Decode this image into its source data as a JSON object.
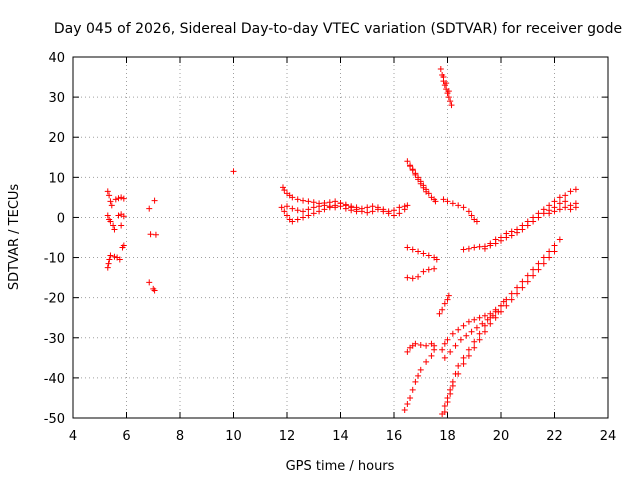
{
  "chart_data": {
    "type": "scatter",
    "title": "Day 045 of 2026, Sidereal Day-to-day VTEC variation (SDTVAR) for receiver gode",
    "xlabel": "GPS time / hours",
    "ylabel": "SDTVAR / TECUs",
    "xlim": [
      4,
      24
    ],
    "ylim": [
      -50,
      40
    ],
    "xticks": [
      4,
      6,
      8,
      10,
      12,
      14,
      16,
      18,
      20,
      22,
      24
    ],
    "yticks": [
      -50,
      -40,
      -30,
      -20,
      -10,
      0,
      10,
      20,
      30,
      40
    ],
    "grid": true,
    "marker": "+",
    "color": "#ff0000",
    "points": [
      [
        5.3,
        6.5
      ],
      [
        5.35,
        5.5
      ],
      [
        5.4,
        4.0
      ],
      [
        5.45,
        3.0
      ],
      [
        5.3,
        0.5
      ],
      [
        5.35,
        -0.5
      ],
      [
        5.4,
        -1.0
      ],
      [
        5.55,
        -3.0
      ],
      [
        5.5,
        -2.0
      ],
      [
        5.3,
        -12.5
      ],
      [
        5.33,
        -11.5
      ],
      [
        5.36,
        -10.5
      ],
      [
        5.4,
        -9.5
      ],
      [
        5.55,
        -9.8
      ],
      [
        5.65,
        -10.0
      ],
      [
        5.75,
        -10.5
      ],
      [
        5.6,
        4.5
      ],
      [
        5.7,
        4.8
      ],
      [
        5.8,
        5.0
      ],
      [
        5.9,
        4.7
      ],
      [
        5.7,
        0.5
      ],
      [
        5.8,
        0.8
      ],
      [
        5.9,
        0.3
      ],
      [
        5.8,
        -2.0
      ],
      [
        5.85,
        -7.5
      ],
      [
        5.9,
        -7.0
      ],
      [
        6.85,
        2.2
      ],
      [
        7.05,
        4.2
      ],
      [
        6.9,
        -4.2
      ],
      [
        7.1,
        -4.3
      ],
      [
        6.85,
        -16.2
      ],
      [
        7.0,
        -17.8
      ],
      [
        7.05,
        -18.2
      ],
      [
        10.0,
        11.5
      ],
      [
        11.85,
        7.5
      ],
      [
        11.9,
        6.8
      ],
      [
        12.0,
        6.0
      ],
      [
        12.1,
        5.5
      ],
      [
        12.2,
        5.0
      ],
      [
        12.4,
        4.5
      ],
      [
        12.6,
        4.2
      ],
      [
        12.8,
        4.0
      ],
      [
        13.0,
        3.8
      ],
      [
        13.2,
        3.5
      ],
      [
        13.4,
        3.6
      ],
      [
        13.6,
        3.8
      ],
      [
        13.8,
        4.0
      ],
      [
        14.0,
        3.6
      ],
      [
        14.2,
        3.2
      ],
      [
        14.4,
        2.8
      ],
      [
        14.6,
        2.5
      ],
      [
        14.8,
        2.2
      ],
      [
        15.0,
        2.5
      ],
      [
        15.2,
        2.8
      ],
      [
        15.4,
        2.5
      ],
      [
        15.6,
        2.0
      ],
      [
        15.8,
        1.5
      ],
      [
        16.0,
        1.8
      ],
      [
        16.2,
        2.5
      ],
      [
        16.4,
        2.8
      ],
      [
        11.8,
        2.5
      ],
      [
        11.9,
        1.5
      ],
      [
        12.0,
        0.5
      ],
      [
        12.1,
        -0.5
      ],
      [
        12.2,
        -1.0
      ],
      [
        12.4,
        -0.5
      ],
      [
        12.6,
        0.0
      ],
      [
        12.8,
        0.5
      ],
      [
        13.0,
        1.0
      ],
      [
        13.2,
        1.5
      ],
      [
        13.4,
        2.0
      ],
      [
        13.6,
        2.5
      ],
      [
        13.8,
        3.0
      ],
      [
        14.0,
        3.5
      ],
      [
        14.2,
        3.0
      ],
      [
        14.4,
        2.5
      ],
      [
        14.6,
        2.0
      ],
      [
        14.8,
        1.5
      ],
      [
        15.0,
        1.2
      ],
      [
        15.2,
        1.5
      ],
      [
        15.4,
        2.0
      ],
      [
        15.6,
        1.5
      ],
      [
        15.8,
        1.0
      ],
      [
        16.0,
        0.5
      ],
      [
        16.2,
        1.0
      ],
      [
        16.4,
        2.0
      ],
      [
        16.5,
        3.0
      ],
      [
        12.0,
        2.8
      ],
      [
        12.2,
        2.2
      ],
      [
        12.4,
        1.8
      ],
      [
        12.6,
        1.5
      ],
      [
        12.8,
        2.0
      ],
      [
        13.0,
        2.5
      ],
      [
        13.2,
        2.8
      ],
      [
        13.4,
        3.0
      ],
      [
        13.6,
        2.8
      ],
      [
        13.8,
        2.5
      ],
      [
        14.0,
        2.8
      ],
      [
        14.2,
        2.2
      ],
      [
        14.4,
        1.8
      ],
      [
        14.6,
        1.5
      ],
      [
        16.5,
        14.0
      ],
      [
        16.6,
        13.0
      ],
      [
        16.7,
        12.0
      ],
      [
        16.8,
        11.0
      ],
      [
        16.9,
        10.0
      ],
      [
        17.0,
        9.0
      ],
      [
        17.1,
        8.0
      ],
      [
        17.2,
        7.0
      ],
      [
        17.3,
        6.0
      ],
      [
        17.4,
        5.0
      ],
      [
        17.5,
        4.5
      ],
      [
        17.55,
        4.0
      ],
      [
        16.6,
        12.8
      ],
      [
        16.7,
        11.8
      ],
      [
        16.8,
        10.6
      ],
      [
        16.9,
        9.5
      ],
      [
        17.0,
        8.4
      ],
      [
        17.1,
        7.4
      ],
      [
        17.2,
        6.4
      ],
      [
        17.75,
        37.0
      ],
      [
        17.8,
        35.5
      ],
      [
        17.85,
        34.0
      ],
      [
        17.9,
        33.0
      ],
      [
        17.95,
        32.0
      ],
      [
        18.0,
        31.0
      ],
      [
        18.05,
        30.0
      ],
      [
        18.1,
        29.0
      ],
      [
        18.15,
        28.0
      ],
      [
        17.85,
        35.0
      ],
      [
        17.95,
        33.5
      ],
      [
        18.05,
        31.5
      ],
      [
        17.85,
        4.5
      ],
      [
        18.0,
        4.0
      ],
      [
        18.2,
        3.5
      ],
      [
        18.4,
        3.0
      ],
      [
        18.6,
        2.5
      ],
      [
        18.8,
        1.5
      ],
      [
        18.9,
        0.5
      ],
      [
        19.0,
        -0.5
      ],
      [
        19.1,
        -1.0
      ],
      [
        16.5,
        -7.5
      ],
      [
        16.7,
        -8.0
      ],
      [
        16.9,
        -8.5
      ],
      [
        17.1,
        -9.0
      ],
      [
        17.3,
        -9.5
      ],
      [
        17.5,
        -10.0
      ],
      [
        17.6,
        -10.5
      ],
      [
        16.5,
        -15.0
      ],
      [
        16.7,
        -15.2
      ],
      [
        16.9,
        -14.8
      ],
      [
        17.1,
        -13.5
      ],
      [
        17.3,
        -13.0
      ],
      [
        17.5,
        -12.8
      ],
      [
        16.5,
        -33.5
      ],
      [
        16.6,
        -32.5
      ],
      [
        16.7,
        -32.0
      ],
      [
        16.8,
        -31.5
      ],
      [
        17.0,
        -31.8
      ],
      [
        17.2,
        -32.0
      ],
      [
        17.4,
        -31.5
      ],
      [
        17.5,
        -32.0
      ],
      [
        16.4,
        -48.0
      ],
      [
        16.5,
        -46.5
      ],
      [
        16.6,
        -45.0
      ],
      [
        16.7,
        -43.0
      ],
      [
        16.8,
        -41.0
      ],
      [
        16.9,
        -39.5
      ],
      [
        17.0,
        -38.0
      ],
      [
        17.2,
        -36.0
      ],
      [
        17.4,
        -34.5
      ],
      [
        17.5,
        -33.0
      ],
      [
        17.7,
        -24.0
      ],
      [
        17.8,
        -23.0
      ],
      [
        17.9,
        -21.5
      ],
      [
        18.0,
        -20.5
      ],
      [
        18.05,
        -19.5
      ],
      [
        17.8,
        -49.0
      ],
      [
        17.9,
        -47.0
      ],
      [
        18.0,
        -45.0
      ],
      [
        18.1,
        -43.0
      ],
      [
        18.2,
        -41.0
      ],
      [
        18.3,
        -39.0
      ],
      [
        18.4,
        -37.0
      ],
      [
        18.6,
        -35.0
      ],
      [
        18.8,
        -33.0
      ],
      [
        19.0,
        -31.0
      ],
      [
        19.2,
        -29.0
      ],
      [
        19.4,
        -27.0
      ],
      [
        19.6,
        -25.0
      ],
      [
        19.8,
        -23.5
      ],
      [
        20.0,
        -22.0
      ],
      [
        20.2,
        -20.5
      ],
      [
        20.4,
        -19.0
      ],
      [
        20.6,
        -17.5
      ],
      [
        20.8,
        -16.0
      ],
      [
        21.0,
        -14.5
      ],
      [
        21.2,
        -13.0
      ],
      [
        21.4,
        -11.5
      ],
      [
        21.6,
        -10.0
      ],
      [
        21.8,
        -8.5
      ],
      [
        22.0,
        -7.0
      ],
      [
        22.2,
        -5.5
      ],
      [
        17.9,
        -48.5
      ],
      [
        18.0,
        -46.0
      ],
      [
        18.1,
        -44.0
      ],
      [
        18.2,
        -42.0
      ],
      [
        18.4,
        -39.0
      ],
      [
        18.6,
        -36.5
      ],
      [
        18.8,
        -34.5
      ],
      [
        19.0,
        -32.5
      ],
      [
        19.2,
        -30.5
      ],
      [
        19.4,
        -28.5
      ],
      [
        19.6,
        -26.5
      ],
      [
        19.8,
        -25.0
      ],
      [
        20.0,
        -23.5
      ],
      [
        20.2,
        -22.0
      ],
      [
        20.4,
        -20.5
      ],
      [
        20.6,
        -19.0
      ],
      [
        20.8,
        -17.5
      ],
      [
        21.0,
        -16.0
      ],
      [
        21.2,
        -14.5
      ],
      [
        21.4,
        -13.0
      ],
      [
        21.6,
        -11.5
      ],
      [
        21.8,
        -10.0
      ],
      [
        22.0,
        -8.5
      ],
      [
        17.8,
        -33.0
      ],
      [
        17.9,
        -31.5
      ],
      [
        18.0,
        -30.5
      ],
      [
        18.2,
        -29.0
      ],
      [
        18.4,
        -28.0
      ],
      [
        18.6,
        -27.0
      ],
      [
        18.8,
        -26.0
      ],
      [
        19.0,
        -25.5
      ],
      [
        19.2,
        -25.0
      ],
      [
        19.4,
        -24.5
      ],
      [
        19.6,
        -24.0
      ],
      [
        19.8,
        -23.0
      ],
      [
        20.0,
        -22.0
      ],
      [
        20.1,
        -21.0
      ],
      [
        17.9,
        -35.0
      ],
      [
        18.1,
        -33.5
      ],
      [
        18.3,
        -32.0
      ],
      [
        18.5,
        -30.5
      ],
      [
        18.7,
        -29.5
      ],
      [
        18.9,
        -28.5
      ],
      [
        19.1,
        -27.5
      ],
      [
        19.3,
        -26.5
      ],
      [
        19.5,
        -25.5
      ],
      [
        19.7,
        -24.5
      ],
      [
        19.9,
        -23.5
      ],
      [
        18.6,
        -8.0
      ],
      [
        18.8,
        -7.8
      ],
      [
        19.0,
        -7.5
      ],
      [
        19.2,
        -7.3
      ],
      [
        19.4,
        -7.2
      ],
      [
        19.6,
        -6.5
      ],
      [
        19.8,
        -5.5
      ],
      [
        20.0,
        -5.0
      ],
      [
        20.2,
        -4.0
      ],
      [
        20.4,
        -3.5
      ],
      [
        20.6,
        -3.0
      ],
      [
        20.8,
        -2.0
      ],
      [
        21.0,
        -1.0
      ],
      [
        21.2,
        0.0
      ],
      [
        21.4,
        1.0
      ],
      [
        21.6,
        2.0
      ],
      [
        21.8,
        3.0
      ],
      [
        22.0,
        4.0
      ],
      [
        22.2,
        5.0
      ],
      [
        22.4,
        5.5
      ],
      [
        22.6,
        6.5
      ],
      [
        22.8,
        7.0
      ],
      [
        19.4,
        -7.8
      ],
      [
        19.6,
        -7.0
      ],
      [
        19.8,
        -6.5
      ],
      [
        20.0,
        -5.8
      ],
      [
        20.2,
        -5.0
      ],
      [
        20.4,
        -4.5
      ],
      [
        20.6,
        -3.8
      ],
      [
        20.8,
        -3.0
      ],
      [
        21.0,
        -2.0
      ],
      [
        21.2,
        -1.0
      ],
      [
        21.4,
        0.0
      ],
      [
        21.6,
        1.0
      ],
      [
        21.8,
        1.8
      ],
      [
        22.0,
        2.5
      ],
      [
        22.2,
        3.5
      ],
      [
        22.4,
        4.0
      ],
      [
        22.6,
        3.0
      ],
      [
        22.8,
        2.5
      ],
      [
        21.8,
        1.0
      ],
      [
        22.0,
        1.5
      ],
      [
        22.2,
        2.0
      ],
      [
        22.4,
        2.5
      ],
      [
        22.6,
        2.0
      ],
      [
        22.8,
        3.5
      ]
    ]
  }
}
